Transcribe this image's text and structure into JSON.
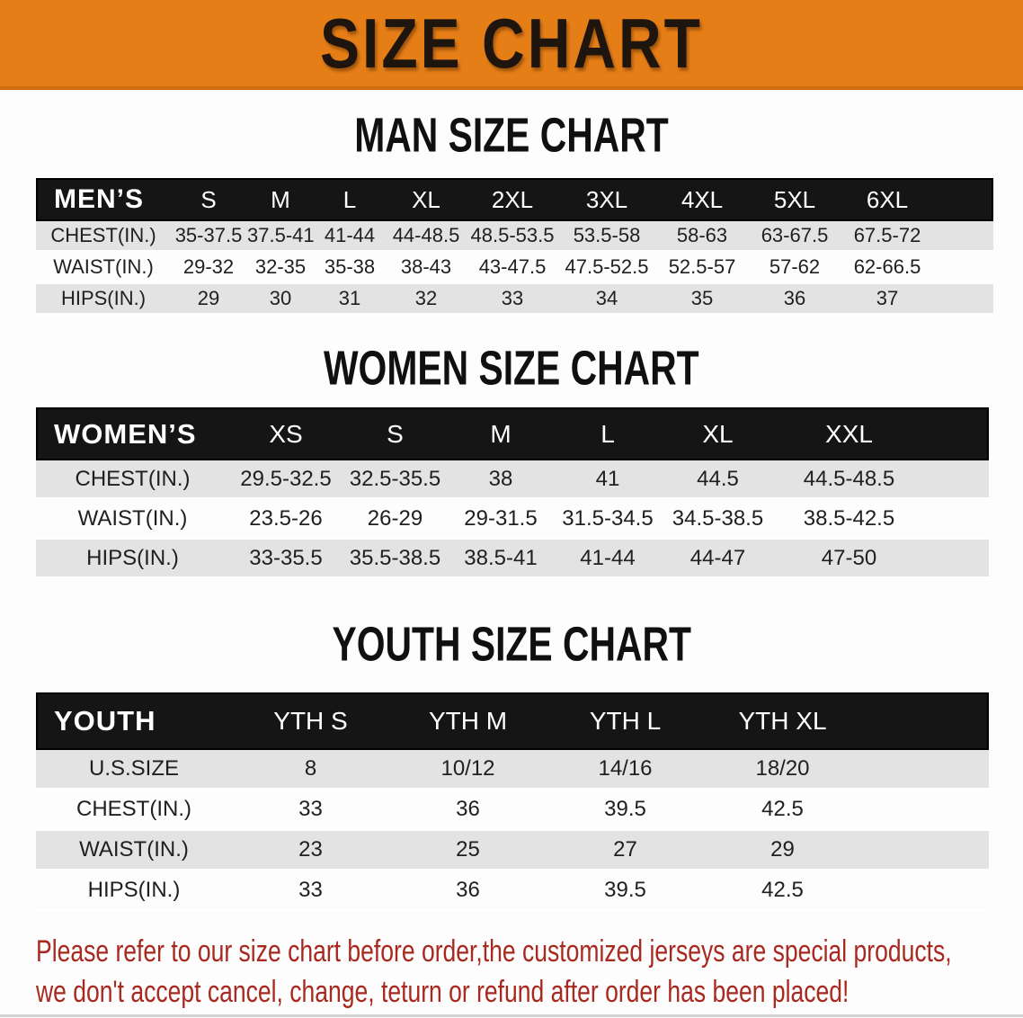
{
  "banner": {
    "title": "SIZE CHART",
    "bg_color": "#e67e17",
    "text_color": "#1d150e"
  },
  "sections": [
    {
      "heading": "MAN SIZE CHART",
      "table": {
        "corner_label": "MEN’S",
        "columns": [
          "S",
          "M",
          "L",
          "XL",
          "2XL",
          "3XL",
          "4XL",
          "5XL",
          "6XL"
        ],
        "rows": [
          {
            "label": "CHEST(IN.)",
            "values": [
              "35-37.5",
              "37.5-41",
              "41-44",
              "44-48.5",
              "48.5-53.5",
              "53.5-58",
              "58-63",
              "63-67.5",
              "67.5-72"
            ]
          },
          {
            "label": "WAIST(IN.)",
            "values": [
              "29-32",
              "32-35",
              "35-38",
              "38-43",
              "43-47.5",
              "47.5-52.5",
              "52.5-57",
              "57-62",
              "62-66.5"
            ]
          },
          {
            "label": "HIPS(IN.)",
            "values": [
              "29",
              "30",
              "31",
              "32",
              "33",
              "34",
              "35",
              "36",
              "37"
            ]
          }
        ]
      }
    },
    {
      "heading": "WOMEN SIZE CHART",
      "table": {
        "corner_label": "WOMEN’S",
        "columns": [
          "XS",
          "S",
          "M",
          "L",
          "XL",
          "XXL"
        ],
        "rows": [
          {
            "label": "CHEST(IN.)",
            "values": [
              "29.5-32.5",
              "32.5-35.5",
              "38",
              "41",
              "44.5",
              "44.5-48.5"
            ]
          },
          {
            "label": "WAIST(IN.)",
            "values": [
              "23.5-26",
              "26-29",
              "29-31.5",
              "31.5-34.5",
              "34.5-38.5",
              "38.5-42.5"
            ]
          },
          {
            "label": "HIPS(IN.)",
            "values": [
              "33-35.5",
              "35.5-38.5",
              "38.5-41",
              "41-44",
              "44-47",
              "47-50"
            ]
          }
        ]
      }
    },
    {
      "heading": "YOUTH SIZE CHART",
      "table": {
        "corner_label": "YOUTH",
        "columns": [
          "YTH S",
          "YTH M",
          "YTH L",
          "YTH XL"
        ],
        "rows": [
          {
            "label": "U.S.SIZE",
            "values": [
              "8",
              "10/12",
              "14/16",
              "18/20"
            ]
          },
          {
            "label": "CHEST(IN.)",
            "values": [
              "33",
              "36",
              "39.5",
              "42.5"
            ]
          },
          {
            "label": "WAIST(IN.)",
            "values": [
              "23",
              "25",
              "27",
              "29"
            ]
          },
          {
            "label": "HIPS(IN.)",
            "values": [
              "33",
              "36",
              "39.5",
              "42.5"
            ]
          }
        ]
      }
    }
  ],
  "disclaimer": {
    "line1": "Please refer to our size chart before order,the customized jerseys are special products,",
    "line2": "we don't accept cancel, change, teturn or refund after order has been placed!",
    "color": "#a8291f"
  }
}
